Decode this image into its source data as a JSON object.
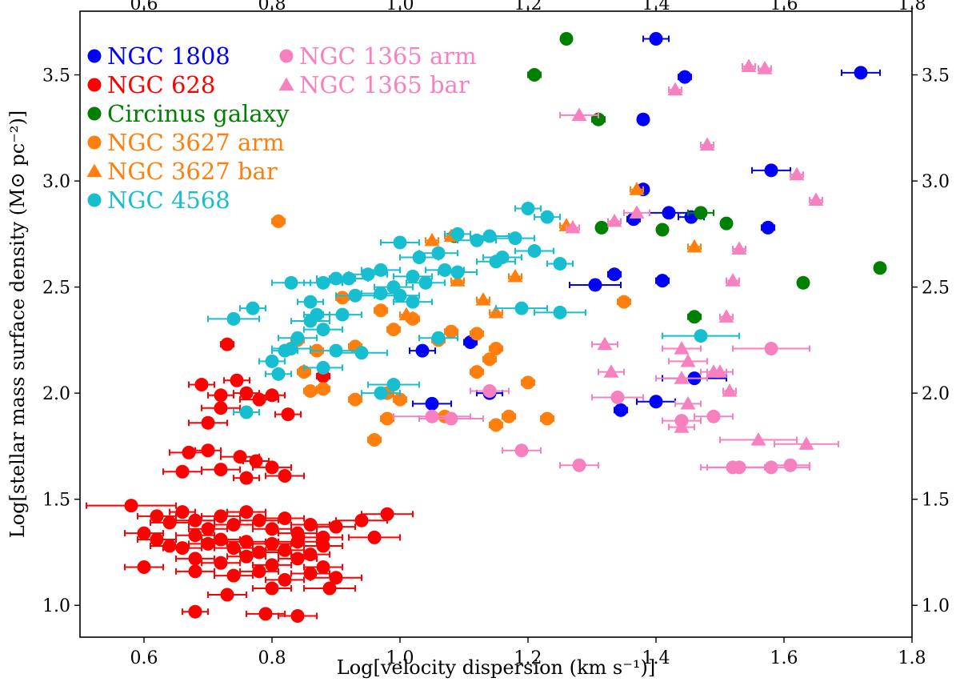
{
  "chart_data": {
    "type": "scatter",
    "xlabel": "Log[velocity dispersion (km s⁻¹)]",
    "ylabel": "Log[stellar mass surface density (M⊙ pc⁻²)]",
    "xlim": [
      0.5,
      1.8
    ],
    "ylim": [
      0.85,
      3.8
    ],
    "x_ticks": [
      "0.6",
      "0.8",
      "1.0",
      "1.2",
      "1.4",
      "1.6",
      "1.8"
    ],
    "y_ticks": [
      "1.0",
      "1.5",
      "2.0",
      "2.5",
      "3.0",
      "3.5"
    ],
    "ticks_mirrored": "top and right",
    "grid": false,
    "legend": {
      "placement": "top-left",
      "columns": [
        [
          "NGC 1808",
          "NGC 628",
          "Circinus galaxy",
          "NGC 3627 arm",
          "NGC 3627 bar",
          "NGC 4568"
        ],
        [
          "NGC 1365 arm",
          "NGC 1365 bar"
        ]
      ]
    },
    "series": [
      {
        "name": "NGC 1808",
        "color": "#0000ff",
        "marker": "circle",
        "points": [
          [
            1.4,
            3.67,
            0.02
          ],
          [
            1.72,
            3.51,
            0.03
          ],
          [
            1.445,
            3.49,
            0.01
          ],
          [
            1.38,
            3.29,
            0.0
          ],
          [
            1.58,
            3.05,
            0.03
          ],
          [
            1.38,
            2.96,
            0.0
          ],
          [
            1.42,
            2.85,
            0.03
          ],
          [
            1.365,
            2.82,
            0.01
          ],
          [
            1.455,
            2.83,
            0.02
          ],
          [
            1.575,
            2.78,
            0.01
          ],
          [
            1.335,
            2.56,
            0.01
          ],
          [
            1.305,
            2.51,
            0.04
          ],
          [
            1.41,
            2.53,
            0.01
          ],
          [
            1.11,
            2.24,
            0.01
          ],
          [
            1.035,
            2.2,
            0.02
          ],
          [
            1.46,
            2.07,
            0.05
          ],
          [
            1.05,
            1.95,
            0.03
          ],
          [
            1.14,
            2.0,
            0.02
          ],
          [
            1.345,
            1.92,
            0.01
          ],
          [
            1.4,
            1.96,
            0.03
          ]
        ]
      },
      {
        "name": "NGC 628",
        "color": "#ff0000",
        "marker": "circle",
        "points": [
          [
            0.73,
            2.23,
            0.01
          ],
          [
            0.69,
            2.04,
            0.02
          ],
          [
            0.745,
            2.06,
            0.02
          ],
          [
            0.72,
            1.99,
            0.02
          ],
          [
            0.76,
            2.0,
            0.02
          ],
          [
            0.78,
            1.97,
            0.03
          ],
          [
            0.8,
            1.99,
            0.02
          ],
          [
            0.72,
            1.93,
            0.03
          ],
          [
            0.825,
            1.9,
            0.02
          ],
          [
            0.7,
            1.86,
            0.03
          ],
          [
            0.88,
            2.08,
            0.01
          ],
          [
            0.67,
            1.72,
            0.03
          ],
          [
            0.7,
            1.73,
            0.02
          ],
          [
            0.75,
            1.7,
            0.03
          ],
          [
            0.775,
            1.68,
            0.02
          ],
          [
            0.8,
            1.65,
            0.03
          ],
          [
            0.66,
            1.63,
            0.03
          ],
          [
            0.72,
            1.64,
            0.03
          ],
          [
            0.76,
            1.6,
            0.02
          ],
          [
            0.82,
            1.61,
            0.03
          ],
          [
            0.58,
            1.47,
            0.07
          ],
          [
            0.6,
            1.34,
            0.03
          ],
          [
            0.62,
            1.42,
            0.03
          ],
          [
            0.64,
            1.39,
            0.03
          ],
          [
            0.66,
            1.44,
            0.02
          ],
          [
            0.68,
            1.4,
            0.03
          ],
          [
            0.7,
            1.36,
            0.03
          ],
          [
            0.72,
            1.42,
            0.03
          ],
          [
            0.74,
            1.38,
            0.03
          ],
          [
            0.76,
            1.44,
            0.03
          ],
          [
            0.78,
            1.4,
            0.03
          ],
          [
            0.8,
            1.36,
            0.03
          ],
          [
            0.82,
            1.41,
            0.03
          ],
          [
            0.84,
            1.34,
            0.03
          ],
          [
            0.86,
            1.38,
            0.03
          ],
          [
            0.88,
            1.32,
            0.03
          ],
          [
            0.9,
            1.37,
            0.03
          ],
          [
            0.62,
            1.31,
            0.03
          ],
          [
            0.64,
            1.28,
            0.03
          ],
          [
            0.66,
            1.27,
            0.03
          ],
          [
            0.68,
            1.33,
            0.03
          ],
          [
            0.7,
            1.29,
            0.03
          ],
          [
            0.72,
            1.31,
            0.03
          ],
          [
            0.74,
            1.27,
            0.03
          ],
          [
            0.76,
            1.3,
            0.03
          ],
          [
            0.78,
            1.25,
            0.03
          ],
          [
            0.8,
            1.29,
            0.03
          ],
          [
            0.82,
            1.26,
            0.03
          ],
          [
            0.84,
            1.3,
            0.03
          ],
          [
            0.86,
            1.24,
            0.03
          ],
          [
            0.88,
            1.28,
            0.03
          ],
          [
            0.68,
            1.22,
            0.03
          ],
          [
            0.72,
            1.2,
            0.03
          ],
          [
            0.76,
            1.23,
            0.03
          ],
          [
            0.8,
            1.19,
            0.03
          ],
          [
            0.84,
            1.22,
            0.03
          ],
          [
            0.88,
            1.18,
            0.03
          ],
          [
            0.6,
            1.18,
            0.03
          ],
          [
            0.68,
            1.16,
            0.03
          ],
          [
            0.74,
            1.14,
            0.03
          ],
          [
            0.78,
            1.16,
            0.03
          ],
          [
            0.82,
            1.12,
            0.03
          ],
          [
            0.86,
            1.15,
            0.03
          ],
          [
            0.94,
            1.4,
            0.04
          ],
          [
            0.98,
            1.43,
            0.04
          ],
          [
            0.96,
            1.32,
            0.04
          ],
          [
            0.9,
            1.13,
            0.04
          ],
          [
            0.89,
            1.08,
            0.04
          ],
          [
            0.73,
            1.05,
            0.03
          ],
          [
            0.8,
            1.08,
            0.03
          ],
          [
            0.68,
            0.97,
            0.02
          ],
          [
            0.79,
            0.96,
            0.03
          ],
          [
            0.84,
            0.95,
            0.03
          ]
        ]
      },
      {
        "name": "Circinus galaxy",
        "color": "#008000",
        "marker": "circle",
        "points": [
          [
            1.26,
            3.67,
            0.0
          ],
          [
            1.21,
            3.5,
            0.01
          ],
          [
            1.31,
            3.29,
            0.01
          ],
          [
            1.47,
            2.85,
            0.02
          ],
          [
            1.315,
            2.78,
            0.0
          ],
          [
            1.41,
            2.77,
            0.0
          ],
          [
            1.51,
            2.8,
            0.0
          ],
          [
            1.63,
            2.52,
            0.0
          ],
          [
            1.75,
            2.59,
            0.0
          ],
          [
            1.46,
            2.36,
            0.01
          ],
          [
            1.085,
            2.74,
            0.01
          ]
        ]
      },
      {
        "name": "NGC 3627 arm",
        "color": "#ff7f0e",
        "marker": "circle",
        "points": [
          [
            0.81,
            2.81,
            0.01
          ],
          [
            0.91,
            2.45,
            0.01
          ],
          [
            0.84,
            2.25,
            0.01
          ],
          [
            0.87,
            2.2,
            0.01
          ],
          [
            0.93,
            2.22,
            0.01
          ],
          [
            0.88,
            2.02,
            0.01
          ],
          [
            0.85,
            2.1,
            0.01
          ],
          [
            0.86,
            2.01,
            0.01
          ],
          [
            0.93,
            1.97,
            0.01
          ],
          [
            0.97,
            2.39,
            0.01
          ],
          [
            0.99,
            2.3,
            0.01
          ],
          [
            1.02,
            2.35,
            0.01
          ],
          [
            1.06,
            2.25,
            0.01
          ],
          [
            1.08,
            2.29,
            0.01
          ],
          [
            1.12,
            2.28,
            0.01
          ],
          [
            0.98,
            2.0,
            0.01
          ],
          [
            1.0,
            1.97,
            0.01
          ],
          [
            0.98,
            1.88,
            0.01
          ],
          [
            1.07,
            1.89,
            0.01
          ],
          [
            0.96,
            1.78,
            0.01
          ],
          [
            1.12,
            2.1,
            0.01
          ],
          [
            1.15,
            2.21,
            0.01
          ],
          [
            1.14,
            2.16,
            0.01
          ],
          [
            1.2,
            2.05,
            0.01
          ],
          [
            1.17,
            1.89,
            0.01
          ],
          [
            1.15,
            1.85,
            0.01
          ],
          [
            1.23,
            1.88,
            0.01
          ],
          [
            1.35,
            2.43,
            0.01
          ]
        ]
      },
      {
        "name": "NGC 3627 bar",
        "color": "#ff7f0e",
        "marker": "triangle",
        "points": [
          [
            1.05,
            2.72,
            0.01
          ],
          [
            1.08,
            2.74,
            0.01
          ],
          [
            1.13,
            2.44,
            0.01
          ],
          [
            1.09,
            2.53,
            0.01
          ],
          [
            1.18,
            2.55,
            0.01
          ],
          [
            1.15,
            2.38,
            0.01
          ],
          [
            1.26,
            2.79,
            0.01
          ],
          [
            1.37,
            2.96,
            0.01
          ],
          [
            1.46,
            2.69,
            0.01
          ],
          [
            1.01,
            2.37,
            0.01
          ]
        ]
      },
      {
        "name": "NGC 4568",
        "color": "#17becf",
        "marker": "circle",
        "points": [
          [
            1.2,
            2.87,
            0.02
          ],
          [
            1.23,
            2.83,
            0.02
          ],
          [
            1.18,
            2.73,
            0.03
          ],
          [
            1.21,
            2.67,
            0.03
          ],
          [
            1.19,
            2.4,
            0.04
          ],
          [
            1.25,
            2.61,
            0.02
          ],
          [
            1.25,
            2.38,
            0.04
          ],
          [
            1.09,
            2.75,
            0.02
          ],
          [
            1.12,
            2.72,
            0.03
          ],
          [
            1.14,
            2.74,
            0.03
          ],
          [
            1.15,
            2.62,
            0.03
          ],
          [
            1.16,
            2.64,
            0.03
          ],
          [
            1.0,
            2.71,
            0.03
          ],
          [
            1.03,
            2.64,
            0.03
          ],
          [
            1.06,
            2.66,
            0.03
          ],
          [
            1.02,
            2.55,
            0.03
          ],
          [
            1.04,
            2.52,
            0.03
          ],
          [
            1.07,
            2.58,
            0.03
          ],
          [
            1.09,
            2.57,
            0.03
          ],
          [
            0.99,
            2.5,
            0.03
          ],
          [
            0.97,
            2.58,
            0.03
          ],
          [
            0.95,
            2.56,
            0.03
          ],
          [
            0.92,
            2.54,
            0.03
          ],
          [
            0.9,
            2.54,
            0.03
          ],
          [
            0.97,
            2.47,
            0.03
          ],
          [
            1.0,
            2.46,
            0.03
          ],
          [
            1.02,
            2.43,
            0.03
          ],
          [
            0.93,
            2.46,
            0.03
          ],
          [
            0.83,
            2.52,
            0.03
          ],
          [
            0.88,
            2.52,
            0.03
          ],
          [
            0.86,
            2.43,
            0.02
          ],
          [
            0.87,
            2.37,
            0.02
          ],
          [
            0.91,
            2.37,
            0.03
          ],
          [
            0.86,
            2.34,
            0.03
          ],
          [
            0.88,
            2.3,
            0.03
          ],
          [
            0.84,
            2.26,
            0.03
          ],
          [
            0.77,
            2.4,
            0.02
          ],
          [
            0.74,
            2.35,
            0.04
          ],
          [
            0.82,
            2.2,
            0.02
          ],
          [
            0.83,
            2.21,
            0.03
          ],
          [
            0.8,
            2.15,
            0.02
          ],
          [
            0.81,
            2.09,
            0.02
          ],
          [
            0.9,
            2.2,
            0.04
          ],
          [
            0.94,
            2.19,
            0.04
          ],
          [
            0.88,
            2.12,
            0.03
          ],
          [
            0.99,
            2.04,
            0.04
          ],
          [
            0.97,
            2.0,
            0.03
          ],
          [
            1.06,
            2.26,
            0.03
          ],
          [
            1.47,
            2.27,
            0.06
          ],
          [
            0.76,
            1.91,
            0.02
          ]
        ]
      },
      {
        "name": "NGC 1365 arm",
        "color": "#f781bf",
        "marker": "circle",
        "points": [
          [
            1.58,
            2.21,
            0.06
          ],
          [
            1.14,
            2.01,
            0.03
          ],
          [
            1.19,
            1.73,
            0.03
          ],
          [
            1.28,
            1.66,
            0.03
          ],
          [
            1.34,
            1.98,
            0.04
          ],
          [
            1.49,
            1.89,
            0.03
          ],
          [
            1.44,
            1.87,
            0.03
          ],
          [
            1.52,
            1.65,
            0.05
          ],
          [
            1.53,
            1.65,
            0.05
          ],
          [
            1.58,
            1.65,
            0.06
          ],
          [
            1.61,
            1.66,
            0.03
          ],
          [
            1.05,
            1.89,
            0.06
          ],
          [
            1.08,
            1.88,
            0.05
          ]
        ]
      },
      {
        "name": "NGC 1365 bar",
        "color": "#f781bf",
        "marker": "triangle",
        "points": [
          [
            1.545,
            3.54,
            0.01
          ],
          [
            1.57,
            3.53,
            0.01
          ],
          [
            1.43,
            3.43,
            0.01
          ],
          [
            1.28,
            3.31,
            0.03
          ],
          [
            1.48,
            3.17,
            0.01
          ],
          [
            1.62,
            3.03,
            0.01
          ],
          [
            1.65,
            2.91,
            0.01
          ],
          [
            1.37,
            2.85,
            0.02
          ],
          [
            1.335,
            2.81,
            0.01
          ],
          [
            1.27,
            2.78,
            0.01
          ],
          [
            1.53,
            2.68,
            0.01
          ],
          [
            1.52,
            2.53,
            0.01
          ],
          [
            1.51,
            2.36,
            0.01
          ],
          [
            1.32,
            2.23,
            0.02
          ],
          [
            1.44,
            2.21,
            0.03
          ],
          [
            1.45,
            2.15,
            0.03
          ],
          [
            1.33,
            2.1,
            0.02
          ],
          [
            1.49,
            2.1,
            0.02
          ],
          [
            1.5,
            2.1,
            0.02
          ],
          [
            1.44,
            2.07,
            0.04
          ],
          [
            1.515,
            2.01,
            0.01
          ],
          [
            1.45,
            1.95,
            0.02
          ],
          [
            1.44,
            1.84,
            0.02
          ],
          [
            1.56,
            1.78,
            0.06
          ],
          [
            1.635,
            1.76,
            0.05
          ]
        ]
      }
    ]
  }
}
